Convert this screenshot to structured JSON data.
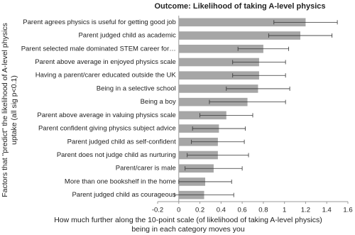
{
  "chart_data": {
    "type": "bar",
    "orientation": "horizontal",
    "title": "Outcome: Likelihood of taking A-level physics",
    "x_label_lines": [
      "How much further along the 10-point scale (of likelihood of taking A-level physics)",
      "being in each category moves you"
    ],
    "y_label_lines": [
      "Factors that \"predict\" the likelihood of A-level physics",
      "uptake (all sig p<0.1)"
    ],
    "categories": [
      "Parent agrees physics is useful for getting good job",
      "Parent judged child as academic",
      "Parent selected male dominated STEM career for…",
      "Parent above average in enjoyed physics scale",
      "Having a parent/carer educated outside the UK",
      "Being in a selective school",
      "Being a boy",
      "Parent above average in valuing physics scale",
      "Parent confident giving physics subject advice",
      "Parent judged child as self-confident",
      "Parent does not judge child as nurturing",
      "Parent/carer is male",
      "More than one bookshelf in the home",
      "Parent judged child as courageous"
    ],
    "values": [
      1.2,
      1.15,
      0.8,
      0.76,
      0.76,
      0.75,
      0.65,
      0.45,
      0.38,
      0.37,
      0.37,
      0.33,
      0.25,
      0.24
    ],
    "errors": [
      0.3,
      0.3,
      0.24,
      0.25,
      0.25,
      0.3,
      0.36,
      0.25,
      0.25,
      0.25,
      0.29,
      0.27,
      0.25,
      0.28
    ],
    "color": "#a6a6a6",
    "xlim": [
      -0.2,
      1.6
    ],
    "xticks": [
      -0.2,
      0,
      0.2,
      0.4,
      0.6,
      0.8,
      1,
      1.2,
      1.4,
      1.6
    ]
  }
}
